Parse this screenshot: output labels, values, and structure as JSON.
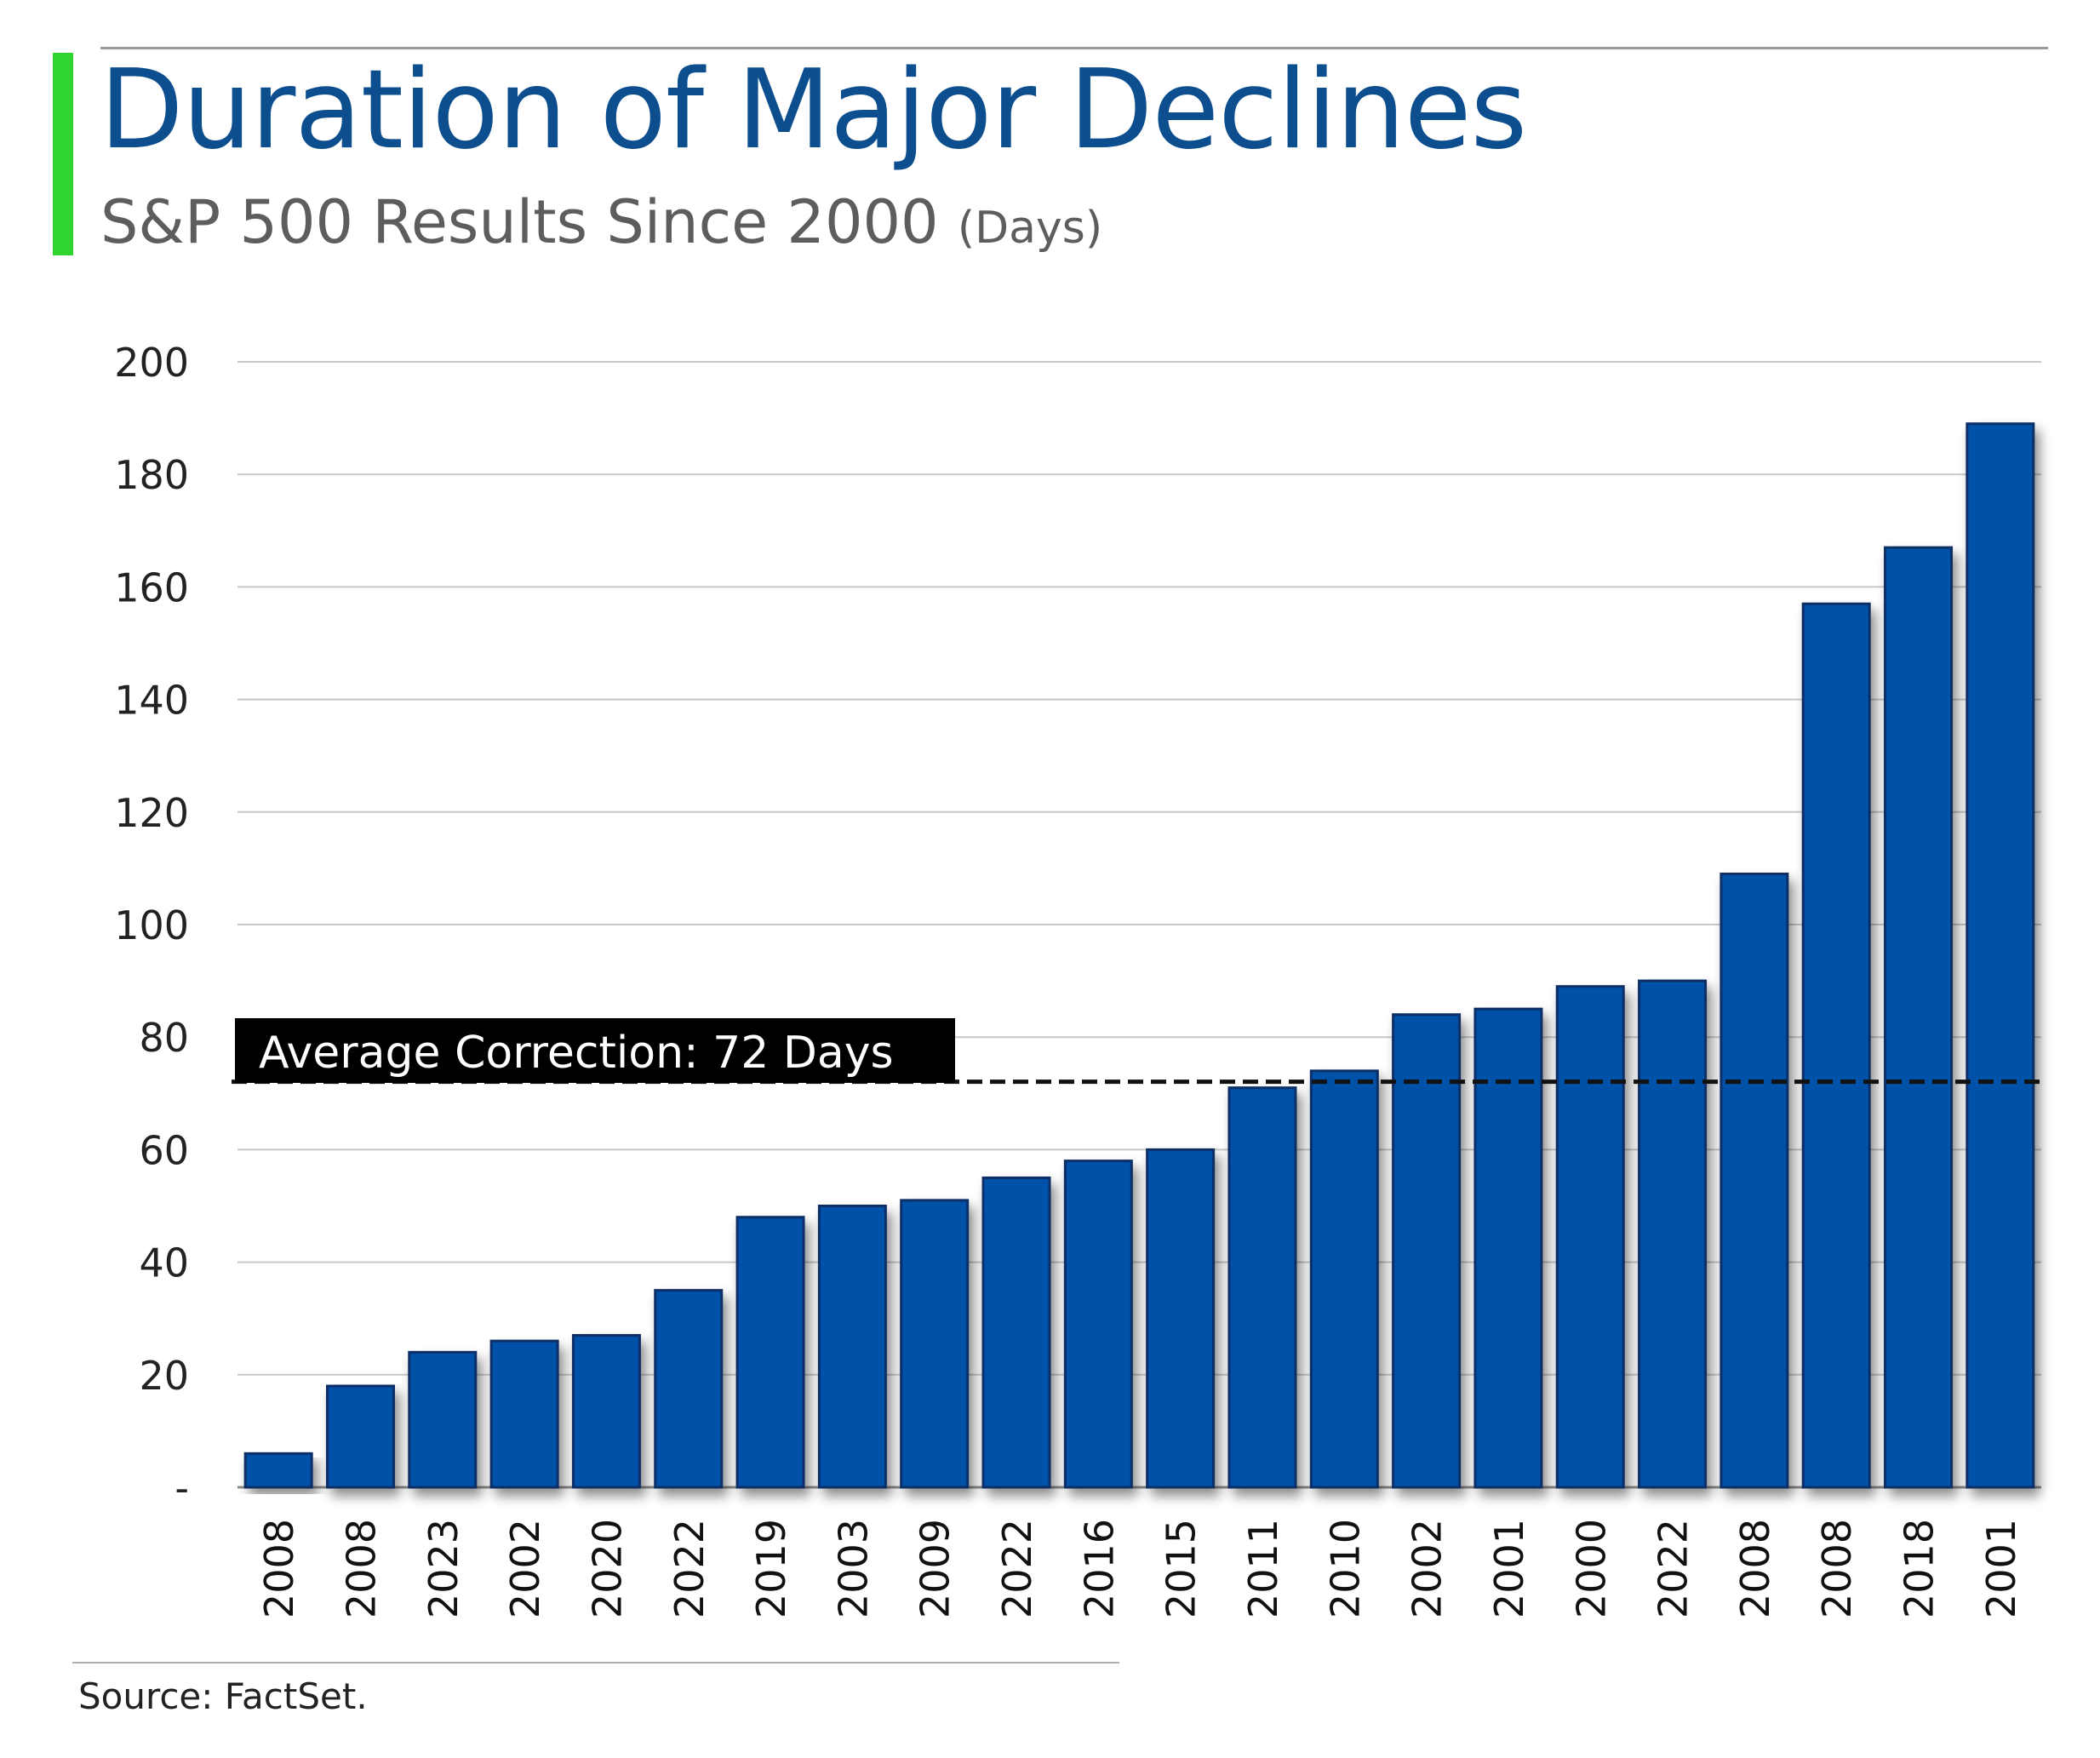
{
  "header": {
    "title": "Duration of Major Declines",
    "subtitle": "S&P 500 Results Since 2000",
    "subtitle_unit": "(Days)"
  },
  "footer": {
    "source": "Source: FactSet."
  },
  "colors": {
    "accent": "#2fd42f",
    "title": "#0c4e8e",
    "bar_fill": "#0051a8",
    "bar_stroke": "#0a2f66",
    "average_line": "#111111",
    "annotation_bg": "#000000",
    "annotation_text": "#ffffff",
    "grid": "#c8c8c8"
  },
  "chart_data": {
    "type": "bar",
    "categories": [
      "2008",
      "2008",
      "2023",
      "2002",
      "2020",
      "2022",
      "2019",
      "2003",
      "2009",
      "2022",
      "2016",
      "2015",
      "2011",
      "2010",
      "2002",
      "2001",
      "2000",
      "2022",
      "2008",
      "2008",
      "2018",
      "2001"
    ],
    "values": [
      6,
      18,
      24,
      26,
      27,
      35,
      48,
      50,
      51,
      55,
      58,
      60,
      71,
      74,
      84,
      85,
      89,
      90,
      109,
      157,
      167,
      189
    ],
    "ylim": [
      0,
      200
    ],
    "yticks": [
      0,
      20,
      40,
      60,
      80,
      100,
      120,
      140,
      160,
      180,
      200
    ],
    "ytick_labels": [
      "-",
      "20",
      "40",
      "60",
      "80",
      "100",
      "120",
      "140",
      "160",
      "180",
      "200"
    ],
    "grid": true,
    "average_value": 72,
    "annotation": "Average Correction: 72 Days"
  }
}
